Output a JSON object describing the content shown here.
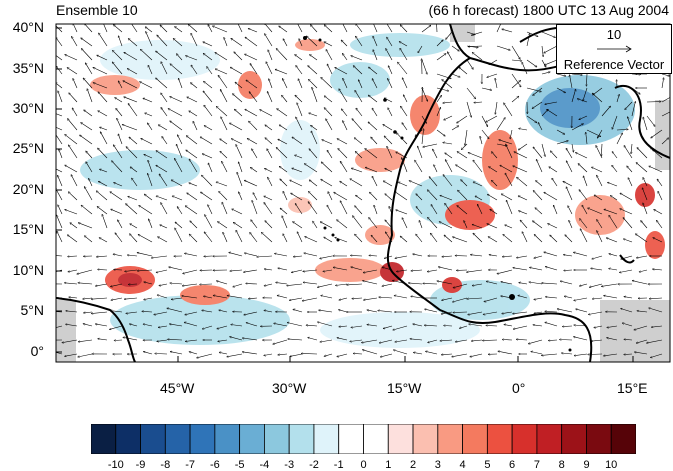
{
  "figure": {
    "title_left": "Ensemble 10",
    "title_right": "(66 h forecast) 1800 UTC 13 Aug 2004",
    "reference_vector": {
      "magnitude": "10",
      "label": "Reference Vector"
    }
  },
  "map": {
    "type": "contour-filled wind map",
    "region": "North Atlantic / West Africa",
    "lon_ticks": [
      "45°W",
      "30°W",
      "15°W",
      "0°",
      "15°E"
    ],
    "lat_ticks": [
      "40°N",
      "35°N",
      "30°N",
      "25°N",
      "20°N",
      "15°N",
      "10°N",
      "5°N",
      "0°"
    ]
  },
  "colorbar": {
    "labels": [
      "-10",
      "-9",
      "-8",
      "-7",
      "-6",
      "-5",
      "-4",
      "-3",
      "-2",
      "-1",
      "0",
      "1",
      "2",
      "3",
      "4",
      "5",
      "6",
      "7",
      "8",
      "9",
      "10"
    ],
    "colors": [
      "#0a1f44",
      "#0d2f66",
      "#1a4d8f",
      "#2563a8",
      "#2f74b8",
      "#4a91c6",
      "#6aaed4",
      "#8cc8de",
      "#b3e0ec",
      "#dff3fa",
      "#ffffff",
      "#ffffff",
      "#fde0dd",
      "#fbbfb0",
      "#f99a82",
      "#f47a5f",
      "#ec5140",
      "#d7302c",
      "#c01f24",
      "#9c1218",
      "#7a0a10",
      "#560308"
    ]
  }
}
